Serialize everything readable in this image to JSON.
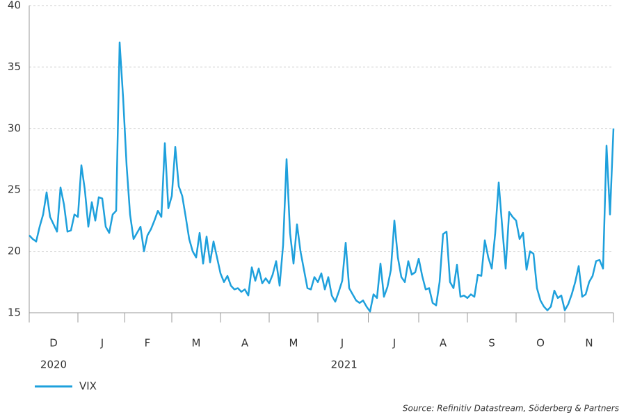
{
  "chart_data": {
    "type": "line",
    "categories": [
      null,
      null,
      null,
      null,
      null,
      null,
      null,
      "D",
      null,
      null,
      null,
      null,
      null,
      null,
      null,
      null,
      null,
      null,
      null,
      null,
      null,
      "J",
      null,
      null,
      null,
      null,
      null,
      null,
      null,
      null,
      null,
      null,
      null,
      null,
      "F",
      null,
      null,
      null,
      null,
      null,
      null,
      null,
      null,
      null,
      null,
      null,
      null,
      null,
      "M",
      null,
      null,
      null,
      null,
      null,
      null,
      null,
      null,
      null,
      null,
      null,
      null,
      null,
      "A",
      null,
      null,
      null,
      null,
      null,
      null,
      null,
      null,
      null,
      null,
      null,
      null,
      null,
      "M",
      null,
      null,
      null,
      null,
      null,
      null,
      null,
      null,
      null,
      null,
      null,
      null,
      null,
      "J",
      null,
      null,
      null,
      null,
      null,
      null,
      null,
      null,
      null,
      null,
      null,
      null,
      null,
      null,
      "J",
      null,
      null,
      null,
      null,
      null,
      null,
      null,
      null,
      null,
      null,
      null,
      null,
      null,
      "A",
      null,
      null,
      null,
      null,
      null,
      null,
      null,
      null,
      null,
      null,
      null,
      null,
      null,
      "S",
      null,
      null,
      null,
      null,
      null,
      null,
      null,
      null,
      null,
      null,
      null,
      null,
      null,
      "O",
      null,
      null,
      null,
      null,
      null,
      null,
      null,
      null,
      null,
      null,
      null,
      null,
      null,
      "N",
      null,
      null,
      null,
      null,
      null,
      null,
      null
    ],
    "x_group_labels": [
      "2020",
      "2021"
    ],
    "series": [
      {
        "name": "VIX",
        "color": "#1ea0dc",
        "values": [
          21.3,
          21.0,
          20.8,
          22.0,
          23.0,
          24.8,
          22.8,
          22.2,
          21.6,
          25.2,
          23.8,
          21.6,
          21.7,
          23.0,
          22.8,
          27.0,
          25.0,
          22.0,
          24.0,
          22.5,
          24.4,
          24.3,
          22.0,
          21.5,
          23.0,
          23.3,
          37.0,
          32.5,
          27.0,
          23.0,
          21.0,
          21.5,
          22.0,
          20.0,
          21.3,
          21.8,
          22.5,
          23.3,
          22.8,
          28.8,
          23.5,
          24.5,
          28.5,
          25.3,
          24.5,
          22.8,
          21.0,
          20.0,
          19.5,
          21.5,
          19.0,
          21.2,
          19.1,
          20.8,
          19.5,
          18.2,
          17.5,
          18.0,
          17.2,
          16.9,
          17.0,
          16.7,
          16.9,
          16.4,
          18.7,
          17.6,
          18.6,
          17.4,
          17.8,
          17.4,
          18.1,
          19.2,
          17.2,
          20.5,
          27.5,
          21.5,
          19.0,
          22.2,
          20.0,
          18.5,
          17.0,
          16.9,
          17.9,
          17.5,
          18.2,
          16.9,
          17.9,
          16.4,
          15.9,
          16.7,
          17.6,
          20.7,
          17.0,
          16.5,
          16.0,
          15.8,
          16.0,
          15.5,
          15.1,
          16.5,
          16.2,
          19.0,
          16.3,
          17.1,
          18.5,
          22.5,
          19.5,
          17.9,
          17.5,
          19.2,
          18.1,
          18.3,
          19.4,
          18.0,
          16.9,
          17.0,
          15.8,
          15.6,
          17.5,
          21.4,
          21.6,
          17.5,
          17.0,
          18.9,
          16.3,
          16.4,
          16.2,
          16.5,
          16.3,
          18.1,
          18.0,
          20.9,
          19.5,
          18.6,
          21.5,
          25.6,
          22.0,
          18.6,
          23.2,
          22.8,
          22.5,
          21.0,
          21.5,
          18.5,
          20.0,
          19.8,
          17.0,
          16.0,
          15.5,
          15.2,
          15.5,
          16.8,
          16.2,
          16.4,
          15.2,
          15.7,
          16.5,
          17.5,
          18.8,
          16.3,
          16.5,
          17.5,
          18.0,
          19.2,
          19.3,
          18.6,
          28.6,
          23.0,
          30.0
        ]
      }
    ],
    "ylim": [
      15,
      40
    ],
    "yticks": [
      15,
      20,
      25,
      30,
      35,
      40
    ],
    "grid": true,
    "source": "Source: Refinitiv Datastream, Söderberg & Partners"
  }
}
